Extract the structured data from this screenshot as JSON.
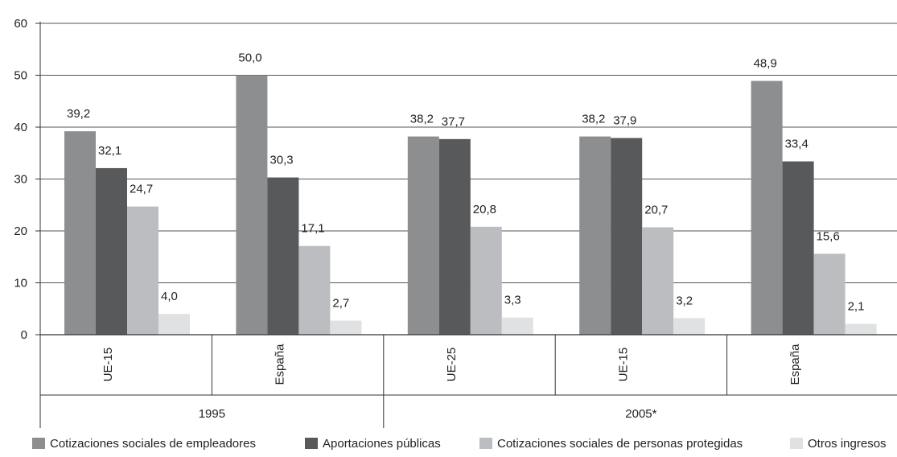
{
  "chart_data": {
    "type": "bar",
    "ylim": [
      0,
      60
    ],
    "yticks": [
      0,
      10,
      20,
      30,
      40,
      50,
      60
    ],
    "grid": true,
    "legend_position": "bottom",
    "groups": [
      {
        "label": "1995",
        "categories": [
          "UE-15",
          "España"
        ]
      },
      {
        "label": "2005*",
        "categories": [
          "UE-25",
          "UE-15",
          "España"
        ]
      }
    ],
    "categories": [
      "UE-15",
      "España",
      "UE-25",
      "UE-15",
      "España"
    ],
    "series": [
      {
        "name": "Cotizaciones sociales de empleadores",
        "color": "#8d8e90",
        "values": [
          39.2,
          50.0,
          38.2,
          38.2,
          48.9
        ],
        "labels": [
          "39,2",
          "50,0",
          "38,2",
          "38,2",
          "48,9"
        ]
      },
      {
        "name": "Aportaciones públicas",
        "color": "#58595b",
        "values": [
          32.1,
          30.3,
          37.7,
          37.9,
          33.4
        ],
        "labels": [
          "32,1",
          "30,3",
          "37,7",
          "37,9",
          "33,4"
        ]
      },
      {
        "name": "Cotizaciones sociales de personas protegidas",
        "color": "#bcbdc0",
        "values": [
          24.7,
          17.1,
          20.8,
          20.7,
          15.6
        ],
        "labels": [
          "24,7",
          "17,1",
          "20,8",
          "20,7",
          "15,6"
        ]
      },
      {
        "name": "Otros ingresos",
        "color": "#e0e1e3",
        "values": [
          4.0,
          2.7,
          3.3,
          3.2,
          2.1
        ],
        "labels": [
          "4,0",
          "2,7",
          "3,3",
          "3,2",
          "2,1"
        ]
      }
    ]
  }
}
